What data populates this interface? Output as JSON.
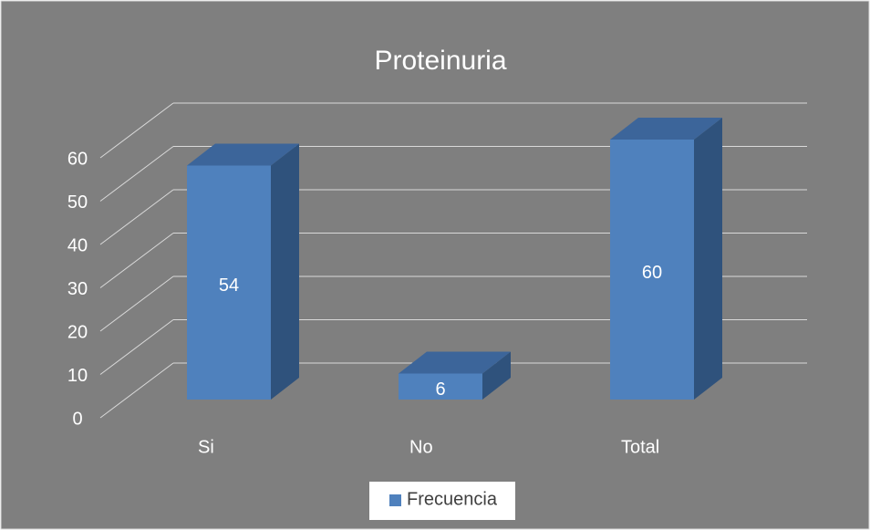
{
  "chart_data": {
    "type": "bar3d",
    "title": "Proteinuria",
    "categories": [
      "Si",
      "No",
      "Total"
    ],
    "series": [
      {
        "name": "Frecuencia",
        "color": "#4f81bd",
        "values": [
          54,
          6,
          60
        ]
      }
    ],
    "ylim": [
      0,
      60
    ],
    "yticks": [
      0,
      10,
      20,
      30,
      40,
      50,
      60
    ],
    "grid": true,
    "legend": "bottom"
  }
}
